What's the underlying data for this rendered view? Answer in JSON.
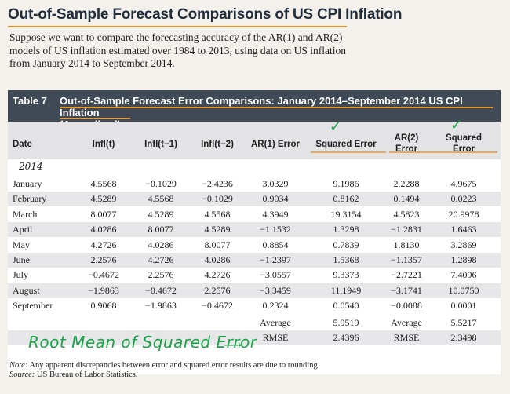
{
  "heading": "Out-of-Sample Forecast Comparisons of US CPI Inflation",
  "intro": [
    "Suppose we want to compare the forecasting accuracy of the AR(1) and AR(2)",
    "models of US inflation estimated over 1984 to 2013, using data on US inflation",
    "from January 2014 to September 2014."
  ],
  "table": {
    "number": "Table 7",
    "title_line1": "Out-of-Sample Forecast Error Comparisons: January 2014–September 2014 US CPI Inflation",
    "title_line2": "(Annualized)",
    "columns": {
      "date": "Date",
      "infl": "Infl(t)",
      "infl1": "Infl(t−1)",
      "infl2": "Infl(t−2)",
      "ar1": "AR(1) Error",
      "sq1": "Squared Error",
      "ar2_line1": "AR(2)",
      "ar2_line2": "Error",
      "sq2_line1": "Squared",
      "sq2_line2": "Error"
    },
    "year": "2014",
    "rows": [
      {
        "month": "January",
        "infl": "4.5568",
        "infl1": "−0.1029",
        "infl2": "−2.4236",
        "ar1": "3.0329",
        "sq1": "9.1986",
        "ar2": "2.2288",
        "sq2": "4.9675"
      },
      {
        "month": "February",
        "infl": "4.5289",
        "infl1": "4.5568",
        "infl2": "−0.1029",
        "ar1": "0.9034",
        "sq1": "0.8162",
        "ar2": "0.1494",
        "sq2": "0.0223"
      },
      {
        "month": "March",
        "infl": "8.0077",
        "infl1": "4.5289",
        "infl2": "4.5568",
        "ar1": "4.3949",
        "sq1": "19.3154",
        "ar2": "4.5823",
        "sq2": "20.9978"
      },
      {
        "month": "April",
        "infl": "4.0286",
        "infl1": "8.0077",
        "infl2": "4.5289",
        "ar1": "−1.1532",
        "sq1": "1.3298",
        "ar2": "−1.2831",
        "sq2": "1.6463"
      },
      {
        "month": "May",
        "infl": "4.2726",
        "infl1": "4.0286",
        "infl2": "8.0077",
        "ar1": "0.8854",
        "sq1": "0.7839",
        "ar2": "1.8130",
        "sq2": "3.2869"
      },
      {
        "month": "June",
        "infl": "2.2576",
        "infl1": "4.2726",
        "infl2": "4.0286",
        "ar1": "−1.2397",
        "sq1": "1.5368",
        "ar2": "−1.1357",
        "sq2": "1.2898"
      },
      {
        "month": "July",
        "infl": "−0.4672",
        "infl1": "2.2576",
        "infl2": "4.2726",
        "ar1": "−3.0557",
        "sq1": "9.3373",
        "ar2": "−2.7221",
        "sq2": "7.4096"
      },
      {
        "month": "August",
        "infl": "−1.9863",
        "infl1": "−0.4672",
        "infl2": "2.2576",
        "ar1": "−3.3459",
        "sq1": "11.1949",
        "ar2": "−3.1741",
        "sq2": "10.0750"
      },
      {
        "month": "September",
        "infl": "0.9068",
        "infl1": "−1.9863",
        "infl2": "−0.4672",
        "ar1": "0.2324",
        "sq1": "0.0540",
        "ar2": "−0.0088",
        "sq2": "0.0001"
      }
    ],
    "summary": [
      {
        "label1": "Average",
        "val1": "5.9519",
        "label2": "Average",
        "val2": "5.5217"
      },
      {
        "label1": "RMSE",
        "val1": "2.4396",
        "label2": "RMSE",
        "val2": "2.3498"
      }
    ]
  },
  "handwritten_annotation": "Root Mean of Squared Error",
  "note_prefix": "Note:",
  "note_text": " Any apparent discrepancies between error and squared error results are due to rounding.",
  "source_prefix": "Source:",
  "source_text": " US Bureau of Labor Statistics.",
  "colors": {
    "title_bar": "#3f4a56",
    "highlight": "#e49a35",
    "annotation": "#1aa247"
  }
}
